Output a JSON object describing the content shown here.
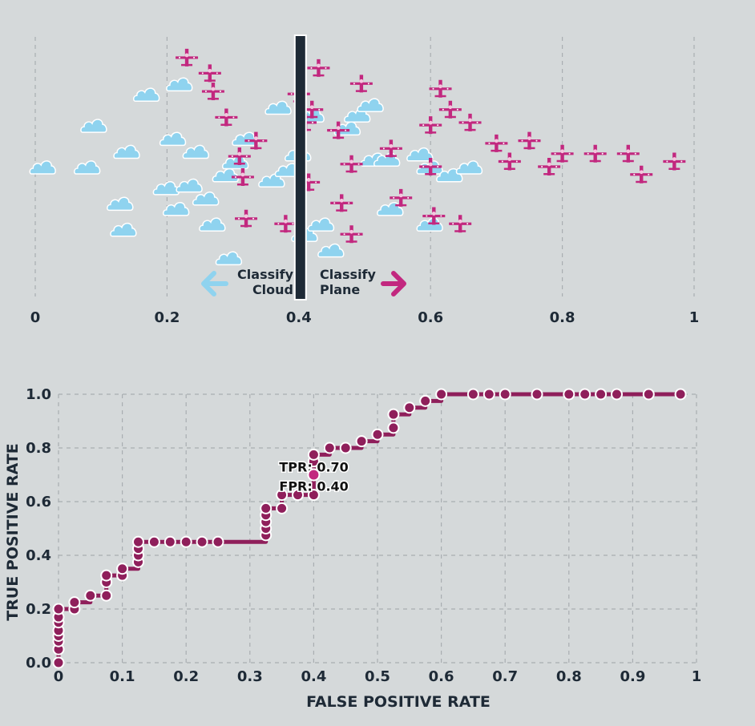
{
  "colors": {
    "background": "#d5d9da",
    "cloud": "#8fd3ef",
    "plane": "#c2287f",
    "threshold": "#1e2a36",
    "roc_line": "#8f1f5b",
    "grid": "#a9aeb1",
    "text": "#1e2a36"
  },
  "threshold_panel": {
    "threshold_value": 0.4,
    "classify_left": [
      "Classify",
      "Cloud"
    ],
    "classify_right": [
      "Classify",
      "Plane"
    ],
    "left_arrow_icon": "arrow-left-icon",
    "right_arrow_icon": "arrow-right-icon",
    "x_ticks": [
      "0",
      "0.2",
      "0.4",
      "0.6",
      "0.8",
      "1"
    ],
    "clouds": [
      [
        0.0125,
        0.5
      ],
      [
        0.08,
        0.5
      ],
      [
        0.09,
        0.34
      ],
      [
        0.13,
        0.64
      ],
      [
        0.135,
        0.74
      ],
      [
        0.14,
        0.44
      ],
      [
        0.17,
        0.22
      ],
      [
        0.2,
        0.58
      ],
      [
        0.21,
        0.39
      ],
      [
        0.215,
        0.66
      ],
      [
        0.22,
        0.18
      ],
      [
        0.235,
        0.57
      ],
      [
        0.245,
        0.44
      ],
      [
        0.26,
        0.62
      ],
      [
        0.27,
        0.72
      ],
      [
        0.29,
        0.53
      ],
      [
        0.295,
        0.85
      ],
      [
        0.305,
        0.48
      ],
      [
        0.32,
        0.39
      ],
      [
        0.36,
        0.55
      ],
      [
        0.37,
        0.27
      ],
      [
        0.385,
        0.51
      ],
      [
        0.4,
        0.45
      ],
      [
        0.41,
        0.76
      ],
      [
        0.42,
        0.3
      ],
      [
        0.435,
        0.72
      ],
      [
        0.45,
        0.82
      ],
      [
        0.475,
        0.35
      ],
      [
        0.49,
        0.3
      ],
      [
        0.51,
        0.26
      ],
      [
        0.515,
        0.47
      ],
      [
        0.535,
        0.47
      ],
      [
        0.54,
        0.66
      ],
      [
        0.585,
        0.45
      ],
      [
        0.6,
        0.5
      ],
      [
        0.6,
        0.72
      ],
      [
        0.63,
        0.53
      ],
      [
        0.66,
        0.5
      ]
    ],
    "planes": [
      [
        0.23,
        0.08
      ],
      [
        0.265,
        0.14
      ],
      [
        0.27,
        0.21
      ],
      [
        0.29,
        0.31
      ],
      [
        0.31,
        0.46
      ],
      [
        0.315,
        0.54
      ],
      [
        0.32,
        0.7
      ],
      [
        0.335,
        0.4
      ],
      [
        0.38,
        0.72
      ],
      [
        0.4,
        0.22
      ],
      [
        0.41,
        0.33
      ],
      [
        0.415,
        0.56
      ],
      [
        0.42,
        0.28
      ],
      [
        0.43,
        0.12
      ],
      [
        0.46,
        0.36
      ],
      [
        0.465,
        0.64
      ],
      [
        0.48,
        0.49
      ],
      [
        0.48,
        0.76
      ],
      [
        0.495,
        0.18
      ],
      [
        0.54,
        0.43
      ],
      [
        0.555,
        0.62
      ],
      [
        0.6,
        0.34
      ],
      [
        0.6,
        0.5
      ],
      [
        0.605,
        0.69
      ],
      [
        0.615,
        0.2
      ],
      [
        0.63,
        0.28
      ],
      [
        0.645,
        0.72
      ],
      [
        0.66,
        0.33
      ],
      [
        0.7,
        0.41
      ],
      [
        0.72,
        0.48
      ],
      [
        0.75,
        0.4
      ],
      [
        0.78,
        0.5
      ],
      [
        0.8,
        0.45
      ],
      [
        0.85,
        0.45
      ],
      [
        0.9,
        0.45
      ],
      [
        0.92,
        0.53
      ],
      [
        0.97,
        0.48
      ]
    ]
  },
  "chart_data": {
    "type": "line",
    "step": true,
    "title": "",
    "xlabel": "FALSE POSITIVE RATE",
    "ylabel": "TRUE POSITIVE RATE",
    "xlim": [
      0,
      1
    ],
    "ylim": [
      0,
      1
    ],
    "grid": true,
    "x_ticks": [
      "0",
      "0.1",
      "0.2",
      "0.3",
      "0.4",
      "0.5",
      "0.6",
      "0.7",
      "0.8",
      "0.9",
      "1"
    ],
    "y_ticks": [
      "0.0",
      "0.2",
      "0.4",
      "0.6",
      "0.8",
      "1.0"
    ],
    "points": [
      [
        0,
        0
      ],
      [
        0,
        0.05
      ],
      [
        0,
        0.08
      ],
      [
        0,
        0.1
      ],
      [
        0,
        0.12
      ],
      [
        0,
        0.15
      ],
      [
        0,
        0.17
      ],
      [
        0,
        0.2
      ],
      [
        0.025,
        0.2
      ],
      [
        0.025,
        0.225
      ],
      [
        0.05,
        0.25
      ],
      [
        0.075,
        0.25
      ],
      [
        0.075,
        0.3
      ],
      [
        0.075,
        0.325
      ],
      [
        0.1,
        0.325
      ],
      [
        0.1,
        0.35
      ],
      [
        0.125,
        0.375
      ],
      [
        0.125,
        0.4
      ],
      [
        0.125,
        0.425
      ],
      [
        0.125,
        0.45
      ],
      [
        0.15,
        0.45
      ],
      [
        0.175,
        0.45
      ],
      [
        0.2,
        0.45
      ],
      [
        0.225,
        0.45
      ],
      [
        0.25,
        0.45
      ],
      [
        0.325,
        0.475
      ],
      [
        0.325,
        0.5
      ],
      [
        0.325,
        0.525
      ],
      [
        0.325,
        0.55
      ],
      [
        0.325,
        0.575
      ],
      [
        0.35,
        0.575
      ],
      [
        0.35,
        0.625
      ],
      [
        0.375,
        0.625
      ],
      [
        0.4,
        0.625
      ],
      [
        0.4,
        0.7
      ],
      [
        0.4,
        0.75
      ],
      [
        0.4,
        0.775
      ],
      [
        0.425,
        0.8
      ],
      [
        0.45,
        0.8
      ],
      [
        0.475,
        0.825
      ],
      [
        0.5,
        0.85
      ],
      [
        0.525,
        0.875
      ],
      [
        0.525,
        0.925
      ],
      [
        0.55,
        0.95
      ],
      [
        0.575,
        0.975
      ],
      [
        0.6,
        1.0
      ],
      [
        0.65,
        1.0
      ],
      [
        0.675,
        1.0
      ],
      [
        0.7,
        1.0
      ],
      [
        0.75,
        1.0
      ],
      [
        0.8,
        1.0
      ],
      [
        0.825,
        1.0
      ],
      [
        0.85,
        1.0
      ],
      [
        0.875,
        1.0
      ],
      [
        0.925,
        1.0
      ],
      [
        0.975,
        1.0
      ]
    ],
    "annotation": {
      "x": 0.4,
      "y": 0.7,
      "lines": [
        "TPR: 0.70",
        "FPR: 0.40"
      ]
    }
  }
}
